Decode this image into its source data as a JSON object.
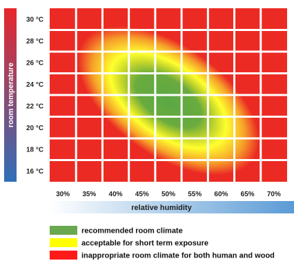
{
  "chart_data": {
    "type": "heatmap",
    "title": "",
    "xlabel": "relative humidity",
    "ylabel": "room temperature",
    "x_ticks": [
      "30%",
      "35%",
      "40%",
      "45%",
      "50%",
      "55%",
      "60%",
      "65%",
      "70%"
    ],
    "y_ticks": [
      "30 °C",
      "28 °C",
      "26 °C",
      "24 °C",
      "22 °C",
      "20 °C",
      "18 °C",
      "16 °C"
    ],
    "x_range": [
      27.5,
      72.5
    ],
    "y_range": [
      15,
      31
    ],
    "grid": true,
    "zones": [
      {
        "level": "recommended",
        "center_humidity": 50,
        "center_temperature": 22.5,
        "color": "#6aa84f"
      },
      {
        "level": "acceptable",
        "color": "#ffff33"
      },
      {
        "level": "inappropriate",
        "color": "#ee2a24"
      }
    ],
    "legend": {
      "placement": "bottom-left",
      "items": [
        {
          "label": "recommended room climate",
          "color": "#6aa84f"
        },
        {
          "label": "acceptable for short term exposure",
          "color": "#ffff00"
        },
        {
          "label": "inappropriate room climate for both human and wood",
          "color": "#ff1a1a"
        }
      ]
    }
  },
  "colors": {
    "temperature_bar_top": "#e8262b",
    "temperature_bar_bottom": "#2f6fb8",
    "humidity_bar_start": "#ffffff",
    "humidity_bar_end": "#5b9bd5",
    "grid_line": "#ffffff"
  }
}
